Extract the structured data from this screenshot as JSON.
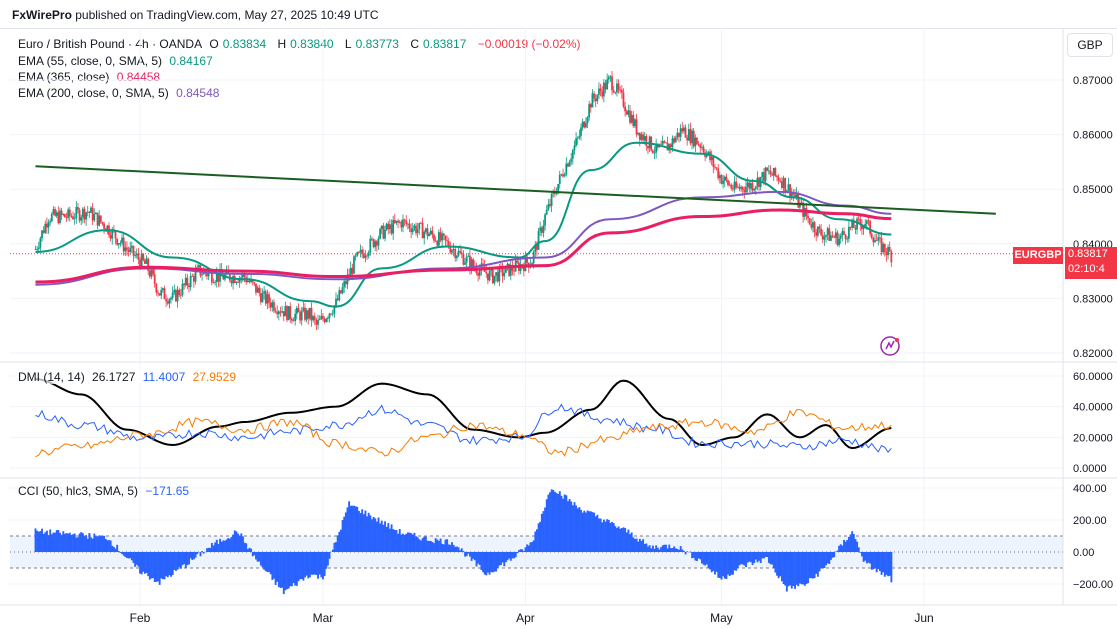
{
  "header": {
    "publisher": "FxWirePro",
    "published_on": " published on TradingView.com, May 27, 2025 10:49 UTC"
  },
  "symbol": {
    "name": "Euro / British Pound · 4h · OANDA",
    "o_label": "O",
    "o": "0.83834",
    "h_label": "H",
    "h": "0.83840",
    "l_label": "L",
    "l": "0.83773",
    "c_label": "C",
    "c": "0.83817",
    "change": "−0.00019 (−0.02%)",
    "ticker": "EURGBP",
    "countdown": "02:10:4"
  },
  "currency": "GBP",
  "indicators": {
    "ema55": {
      "label": "EMA (55, close, 0, SMA, 5)",
      "value": "0.84167",
      "color": "#089981"
    },
    "ema365": {
      "label": "EMA (365, close)",
      "value": "0.84458",
      "color": "#e91e63"
    },
    "ema200": {
      "label": "EMA (200, close, 0, SMA, 5)",
      "value": "0.84548",
      "color": "#7e57c2"
    },
    "dmi": {
      "label": "DMI (14, 14)",
      "adx": "26.1727",
      "plus_di": "11.4007",
      "minus_di": "27.9529"
    },
    "cci": {
      "label": "CCI (50, hlc3, SMA, 5)",
      "value": "−171.65"
    }
  },
  "chart_data": [
    {
      "type": "candlestick",
      "title": "Euro / British Pound · 4h · OANDA",
      "yaxis_ticks": [
        "0.87000",
        "0.86000",
        "0.85000",
        "0.84000",
        "0.83000",
        "0.82000"
      ],
      "ylim": [
        0.82,
        0.875
      ],
      "x_ticks": [
        "Feb",
        "Mar",
        "Apr",
        "May",
        "Jun"
      ],
      "last_price": 0.83817,
      "price_path": [
        [
          "Jan 16",
          0.839
        ],
        [
          "Jan 18",
          0.845
        ],
        [
          "Jan 21",
          0.845
        ],
        [
          "Jan 24",
          0.846
        ],
        [
          "Jan 27",
          0.843
        ],
        [
          "Jan 30",
          0.839
        ],
        [
          "Feb 2",
          0.836
        ],
        [
          "Feb 4",
          0.831
        ],
        [
          "Feb 6",
          0.83
        ],
        [
          "Feb 10",
          0.835
        ],
        [
          "Feb 13",
          0.834
        ],
        [
          "Feb 17",
          0.834
        ],
        [
          "Feb 20",
          0.83
        ],
        [
          "Feb 24",
          0.827
        ],
        [
          "Feb 27",
          0.827
        ],
        [
          "Feb 28",
          0.825
        ],
        [
          "Mar 3",
          0.829
        ],
        [
          "Mar 6",
          0.837
        ],
        [
          "Mar 10",
          0.842
        ],
        [
          "Mar 13",
          0.844
        ],
        [
          "Mar 17",
          0.842
        ],
        [
          "Mar 20",
          0.84
        ],
        [
          "Mar 24",
          0.836
        ],
        [
          "Mar 27",
          0.834
        ],
        [
          "Mar 31",
          0.836
        ],
        [
          "Apr 2",
          0.837
        ],
        [
          "Apr 4",
          0.845
        ],
        [
          "Apr 7",
          0.854
        ],
        [
          "Apr 9",
          0.859
        ],
        [
          "Apr 11",
          0.866
        ],
        [
          "Apr 14",
          0.87
        ],
        [
          "Apr 16",
          0.866
        ],
        [
          "Apr 18",
          0.861
        ],
        [
          "Apr 21",
          0.857
        ],
        [
          "Apr 23",
          0.858
        ],
        [
          "Apr 25",
          0.861
        ],
        [
          "Apr 28",
          0.858
        ],
        [
          "May 1",
          0.852
        ],
        [
          "May 3",
          0.85
        ],
        [
          "May 6",
          0.851
        ],
        [
          "May 8",
          0.853
        ],
        [
          "May 10",
          0.852
        ],
        [
          "May 12",
          0.849
        ],
        [
          "May 14",
          0.845
        ],
        [
          "May 16",
          0.842
        ],
        [
          "May 19",
          0.841
        ],
        [
          "May 21",
          0.843
        ],
        [
          "May 23",
          0.844
        ],
        [
          "May 25",
          0.84
        ],
        [
          "May 27",
          0.838
        ]
      ],
      "series": [
        {
          "name": "EMA (55, close, 0, SMA, 5)",
          "color": "#089981",
          "points": [
            [
              "Jan 16",
              0.8385
            ],
            [
              "Jan 27",
              0.8425
            ],
            [
              "Feb 6",
              0.8375
            ],
            [
              "Feb 17",
              0.8335
            ],
            [
              "Feb 27",
              0.8295
            ],
            [
              "Mar 3",
              0.8285
            ],
            [
              "Mar 10",
              0.8355
            ],
            [
              "Mar 20",
              0.8395
            ],
            [
              "Mar 31",
              0.8375
            ],
            [
              "Apr 4",
              0.8405
            ],
            [
              "Apr 11",
              0.8535
            ],
            [
              "Apr 18",
              0.8585
            ],
            [
              "Apr 28",
              0.8565
            ],
            [
              "May 6",
              0.8515
            ],
            [
              "May 12",
              0.8485
            ],
            [
              "May 19",
              0.8445
            ],
            [
              "May 27",
              0.8417
            ]
          ]
        },
        {
          "name": "EMA (200, close, 0, SMA, 5)",
          "color": "#7e57c2",
          "points": [
            [
              "Jan 16",
              0.8325
            ],
            [
              "Feb 2",
              0.8355
            ],
            [
              "Feb 17",
              0.8345
            ],
            [
              "Mar 3",
              0.8335
            ],
            [
              "Mar 20",
              0.8355
            ],
            [
              "Apr 4",
              0.8375
            ],
            [
              "Apr 14",
              0.8445
            ],
            [
              "Apr 28",
              0.8485
            ],
            [
              "May 10",
              0.8495
            ],
            [
              "May 20",
              0.847
            ],
            [
              "May 27",
              0.8455
            ]
          ]
        },
        {
          "name": "EMA (365, close)",
          "color": "#e91e63",
          "points": [
            [
              "Jan 16",
              0.833
            ],
            [
              "Feb 2",
              0.8357
            ],
            [
              "Feb 17",
              0.835
            ],
            [
              "Mar 3",
              0.834
            ],
            [
              "Mar 20",
              0.8352
            ],
            [
              "Apr 4",
              0.836
            ],
            [
              "Apr 14",
              0.842
            ],
            [
              "Apr 28",
              0.845
            ],
            [
              "May 10",
              0.8462
            ],
            [
              "May 20",
              0.8455
            ],
            [
              "May 27",
              0.8446
            ]
          ]
        },
        {
          "name": "Trendline",
          "color": "#1b5e20",
          "points": [
            [
              "Jan 16",
              0.8542
            ],
            [
              "Jun 12",
              0.8455
            ]
          ]
        }
      ]
    },
    {
      "type": "line",
      "title": "DMI (14, 14)",
      "yaxis_ticks": [
        "60.0000",
        "40.0000",
        "20.0000",
        "0.0000"
      ],
      "ylim": [
        0,
        60
      ],
      "series": [
        {
          "name": "ADX",
          "color": "#000000",
          "points": [
            [
              "Jan 16",
              58
            ],
            [
              "Jan 23",
              48
            ],
            [
              "Jan 30",
              25
            ],
            [
              "Feb 6",
              15
            ],
            [
              "Feb 13",
              27
            ],
            [
              "Feb 17",
              30
            ],
            [
              "Feb 24",
              36
            ],
            [
              "Mar 3",
              40
            ],
            [
              "Mar 10",
              55
            ],
            [
              "Mar 17",
              48
            ],
            [
              "Mar 24",
              25
            ],
            [
              "Mar 31",
              20
            ],
            [
              "Apr 4",
              23
            ],
            [
              "Apr 11",
              38
            ],
            [
              "Apr 16",
              57
            ],
            [
              "Apr 23",
              32
            ],
            [
              "Apr 28",
              15
            ],
            [
              "May 3",
              20
            ],
            [
              "May 8",
              35
            ],
            [
              "May 13",
              20
            ],
            [
              "May 17",
              28
            ],
            [
              "May 21",
              13
            ],
            [
              "May 27",
              26
            ]
          ]
        },
        {
          "name": "+DI",
          "color": "#2962ff",
          "points": [
            [
              "Jan 16",
              35
            ],
            [
              "Jan 23",
              28
            ],
            [
              "Feb 2",
              19
            ],
            [
              "Feb 10",
              23
            ],
            [
              "Feb 17",
              20
            ],
            [
              "Feb 24",
              24
            ],
            [
              "Mar 3",
              28
            ],
            [
              "Mar 10",
              38
            ],
            [
              "Mar 17",
              28
            ],
            [
              "Mar 24",
              18
            ],
            [
              "Mar 31",
              20
            ],
            [
              "Apr 6",
              40
            ],
            [
              "Apr 13",
              32
            ],
            [
              "Apr 20",
              26
            ],
            [
              "Apr 28",
              16
            ],
            [
              "May 6",
              16
            ],
            [
              "May 13",
              14
            ],
            [
              "May 20",
              18
            ],
            [
              "May 27",
              11
            ]
          ]
        },
        {
          "name": "−DI",
          "color": "#f57c00",
          "points": [
            [
              "Jan 16",
              10
            ],
            [
              "Jan 23",
              14
            ],
            [
              "Feb 2",
              22
            ],
            [
              "Feb 10",
              30
            ],
            [
              "Feb 17",
              25
            ],
            [
              "Feb 24",
              30
            ],
            [
              "Mar 3",
              16
            ],
            [
              "Mar 10",
              10
            ],
            [
              "Mar 17",
              20
            ],
            [
              "Mar 24",
              28
            ],
            [
              "Mar 31",
              22
            ],
            [
              "Apr 6",
              10
            ],
            [
              "Apr 13",
              18
            ],
            [
              "Apr 20",
              26
            ],
            [
              "Apr 28",
              30
            ],
            [
              "May 6",
              24
            ],
            [
              "May 13",
              36
            ],
            [
              "May 20",
              26
            ],
            [
              "May 27",
              28
            ]
          ]
        }
      ]
    },
    {
      "type": "histogram",
      "title": "CCI (50, hlc3, SMA, 5)",
      "yaxis_ticks": [
        "400.00",
        "200.00",
        "0.00",
        "−200.00"
      ],
      "ylim": [
        -300,
        420
      ],
      "bands": [
        100,
        -100
      ],
      "bar_color": "#2962ff",
      "values": [
        [
          "Jan 16",
          130
        ],
        [
          "Jan 22",
          110
        ],
        [
          "Jan 27",
          90
        ],
        [
          "Feb 1",
          -120
        ],
        [
          "Feb 4",
          -190
        ],
        [
          "Feb 8",
          -80
        ],
        [
          "Feb 12",
          40
        ],
        [
          "Feb 16",
          130
        ],
        [
          "Feb 19",
          -60
        ],
        [
          "Feb 23",
          -250
        ],
        [
          "Feb 27",
          -140
        ],
        [
          "Mar 1",
          -160
        ],
        [
          "Mar 5",
          300
        ],
        [
          "Mar 9",
          210
        ],
        [
          "Mar 13",
          120
        ],
        [
          "Mar 17",
          80
        ],
        [
          "Mar 21",
          60
        ],
        [
          "Mar 26",
          -140
        ],
        [
          "Mar 30",
          -40
        ],
        [
          "Apr 2",
          60
        ],
        [
          "Apr 5",
          410
        ],
        [
          "Apr 9",
          280
        ],
        [
          "Apr 13",
          200
        ],
        [
          "Apr 17",
          120
        ],
        [
          "Apr 20",
          30
        ],
        [
          "Apr 24",
          40
        ],
        [
          "Apr 28",
          -60
        ],
        [
          "May 1",
          -170
        ],
        [
          "May 4",
          -90
        ],
        [
          "May 8",
          -40
        ],
        [
          "May 11",
          -230
        ],
        [
          "May 14",
          -200
        ],
        [
          "May 17",
          -90
        ],
        [
          "May 21",
          130
        ],
        [
          "May 23",
          -70
        ],
        [
          "May 27",
          -172
        ]
      ]
    }
  ]
}
